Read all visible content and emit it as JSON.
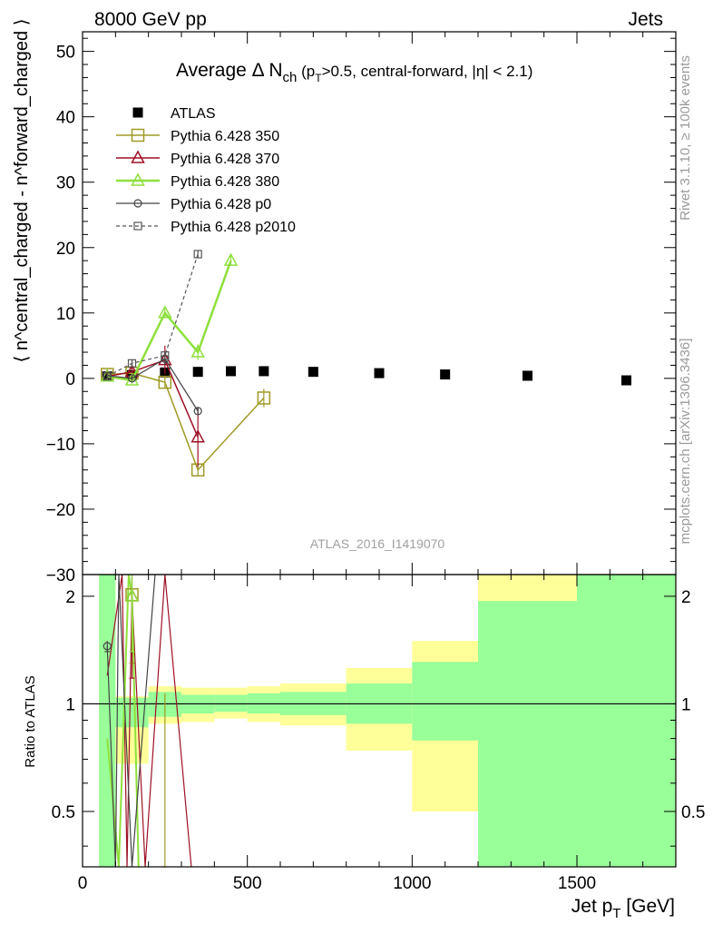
{
  "header": {
    "left": "8000 GeV pp",
    "right": "Jets"
  },
  "side": {
    "rivet": "Rivet 3.1.10, ≥ 100k events",
    "mcplots": "mcplots.cern.ch [arXiv:1306.3436]"
  },
  "watermark": "ATLAS_2016_I1419070",
  "title": {
    "main": "Average Δ N",
    "sub": "ch",
    "rest": " (p",
    "rest_sub": "T",
    "tail": ">0.5, central-forward, |η| < 2.1)"
  },
  "labels": {
    "ylabel_main": "⟨ n^central_charged - n^forward_charged ⟩",
    "ylabel_ratio": "Ratio to ATLAS",
    "xlabel": "Jet p",
    "xlabel_sub": "T",
    "xlabel_unit": " [GeV]"
  },
  "colors": {
    "atlas": "#000000",
    "py350": "#a09a26",
    "py370": "#9d1125",
    "py380": "#8ee03c",
    "p0": "#444444",
    "p2010": "#555555",
    "band_yellow": "#ffff99",
    "band_green": "#99ff99"
  },
  "chart_data": {
    "type": "scatter",
    "xlim": [
      0,
      1800
    ],
    "ylim": [
      -30,
      53
    ],
    "ratio_ylim": [
      0.35,
      2.3
    ],
    "x_ticks": [
      0,
      500,
      1000,
      1500
    ],
    "y_ticks": [
      -30,
      -20,
      -10,
      0,
      10,
      20,
      30,
      40,
      50
    ],
    "ratio_ticks": [
      0.5,
      1,
      2
    ],
    "legend_position": "top-left",
    "series": [
      {
        "name": "ATLAS",
        "style": "data",
        "x": [
          75,
          150,
          250,
          350,
          450,
          550,
          700,
          900,
          1100,
          1350,
          1650
        ],
        "y": [
          0.3,
          0.5,
          0.9,
          1.0,
          1.1,
          1.1,
          1.0,
          0.8,
          0.6,
          0.4,
          -0.3
        ]
      },
      {
        "name": "Pythia 6.428 350",
        "style": "py350",
        "x": [
          75,
          150,
          250,
          350,
          550
        ],
        "y": [
          0.6,
          0.8,
          -0.6,
          -14.0,
          -3.0
        ],
        "err": [
          0.6,
          0.8,
          1.0,
          0.8,
          1.4
        ]
      },
      {
        "name": "Pythia 6.428 370",
        "style": "py370",
        "x": [
          75,
          150,
          250,
          350
        ],
        "y": [
          0.3,
          1.0,
          2.8,
          -9.0
        ],
        "err": [
          0.5,
          1.0,
          2.2,
          4.5
        ]
      },
      {
        "name": "Pythia 6.428 380",
        "style": "py380",
        "x": [
          75,
          150,
          250,
          350,
          450
        ],
        "y": [
          0.3,
          -0.3,
          10.0,
          4.0,
          18.0
        ],
        "err": [
          0.4,
          0.5,
          0.8,
          1.2,
          0.8
        ]
      },
      {
        "name": "Pythia 6.428 p0",
        "style": "p0",
        "x": [
          75,
          150,
          250,
          350
        ],
        "y": [
          0.4,
          0.0,
          3.0,
          -5.0
        ],
        "err": [
          0.3,
          0.4,
          1.0,
          0.6
        ]
      },
      {
        "name": "Pythia 6.428 p2010",
        "style": "p2010",
        "x": [
          75,
          150,
          250,
          350
        ],
        "y": [
          0.3,
          2.3,
          3.5,
          19.0
        ],
        "err": [
          0.3,
          0.5,
          0.6,
          0.6
        ]
      }
    ],
    "ratio_bands": [
      {
        "x0": 50,
        "x1": 100,
        "yellow": [
          0.35,
          2.3
        ],
        "green": [
          0.35,
          2.3
        ]
      },
      {
        "x0": 100,
        "x1": 200,
        "yellow": [
          0.68,
          1.05
        ],
        "green": [
          0.86,
          1.04
        ]
      },
      {
        "x0": 200,
        "x1": 300,
        "yellow": [
          0.88,
          1.12
        ],
        "green": [
          0.92,
          1.08
        ]
      },
      {
        "x0": 300,
        "x1": 400,
        "yellow": [
          0.89,
          1.11
        ],
        "green": [
          0.94,
          1.06
        ]
      },
      {
        "x0": 400,
        "x1": 500,
        "yellow": [
          0.91,
          1.11
        ],
        "green": [
          0.95,
          1.06
        ]
      },
      {
        "x0": 500,
        "x1": 600,
        "yellow": [
          0.89,
          1.12
        ],
        "green": [
          0.94,
          1.07
        ]
      },
      {
        "x0": 600,
        "x1": 800,
        "yellow": [
          0.87,
          1.14
        ],
        "green": [
          0.93,
          1.08
        ]
      },
      {
        "x0": 800,
        "x1": 1000,
        "yellow": [
          0.74,
          1.26
        ],
        "green": [
          0.88,
          1.14
        ]
      },
      {
        "x0": 1000,
        "x1": 1200,
        "yellow": [
          0.5,
          1.5
        ],
        "green": [
          0.79,
          1.31
        ]
      },
      {
        "x0": 1200,
        "x1": 1500,
        "yellow": [
          0.35,
          2.3
        ],
        "green": [
          0.35,
          1.94
        ]
      },
      {
        "x0": 1500,
        "x1": 1800,
        "yellow": [
          0.35,
          2.3
        ],
        "green": [
          0.35,
          2.3
        ]
      }
    ],
    "ratio_lines": [
      {
        "style": "py350",
        "pts": [
          [
            75,
            -0.5
          ],
          [
            150,
            2.0
          ],
          [
            175,
            2.3
          ],
          [
            180,
            0.35
          ]
        ]
      },
      {
        "style": "py370",
        "pts": [
          [
            75,
            1.2
          ],
          [
            120,
            2.3
          ],
          [
            135,
            0.35
          ],
          [
            150,
            2.0
          ],
          [
            190,
            0.35
          ],
          [
            250,
            2.3
          ],
          [
            330,
            0.35
          ]
        ]
      },
      {
        "style": "py380",
        "pts": [
          [
            75,
            0.8
          ],
          [
            110,
            0.35
          ],
          [
            140,
            2.3
          ],
          [
            150,
            2.0
          ],
          [
            170,
            0.35
          ]
        ]
      },
      {
        "style": "p0",
        "pts": [
          [
            75,
            1.45
          ],
          [
            100,
            0.35
          ],
          [
            110,
            2.3
          ],
          [
            150,
            0.35
          ],
          [
            220,
            2.3
          ]
        ]
      }
    ],
    "ratio_points": [
      {
        "style": "py350",
        "x": 150,
        "y": 2.02,
        "lo": 1.3,
        "hi": 2.3
      },
      {
        "style": "py370",
        "x": 150,
        "y": 2.0,
        "lo": 1.18,
        "hi": 2.3
      },
      {
        "style": "py380",
        "x": 150,
        "y": 2.0,
        "lo": 1.4,
        "hi": 2.3
      },
      {
        "style": "py350",
        "x": 250,
        "y": 0.35,
        "lo": 0.35,
        "hi": 1.07
      },
      {
        "style": "p0",
        "x": 75,
        "y": 1.45,
        "lo": 1.4,
        "hi": 1.5
      }
    ]
  }
}
